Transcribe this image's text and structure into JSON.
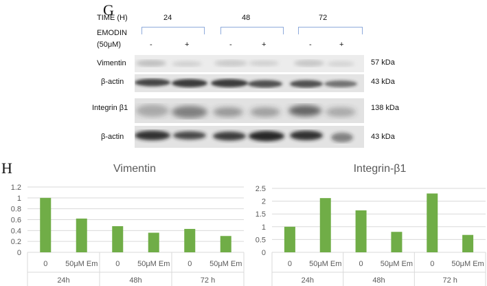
{
  "panel_g_letter": "G",
  "panel_h_letter": "H",
  "blot": {
    "time_label": "TIME (H)",
    "emodin_label_line1": "EMODIN",
    "emodin_label_line2": "(50μM)",
    "timepoints": [
      "24",
      "48",
      "72"
    ],
    "treatment_signs": [
      "-",
      "+",
      "-",
      "+",
      "-",
      "+"
    ],
    "rows": [
      {
        "name": "Vimentin",
        "kda": "57 kDa"
      },
      {
        "name": "β-actin",
        "kda": "43 kDa"
      },
      {
        "name": "Integrin β1",
        "kda": "138 kDa"
      },
      {
        "name": "β-actin",
        "kda": "43 kDa"
      }
    ],
    "band_color": "#2a2a2a",
    "background_color": "#e9e9e9"
  },
  "chart_data": [
    {
      "type": "bar",
      "title": "Vimentin",
      "categories": [
        "0",
        "50μM Em",
        "0",
        "50μM Em",
        "0",
        "50μM Em"
      ],
      "groups": [
        "24h",
        "48h",
        "72 h"
      ],
      "values": [
        1.0,
        0.62,
        0.48,
        0.36,
        0.43,
        0.3
      ],
      "yticks": [
        "0",
        "0.2",
        "0.4",
        "0.6",
        "0.8",
        "1",
        "1.2"
      ],
      "ylim": [
        0,
        1.2
      ],
      "bar_color": "#70ad47",
      "xlabel": "",
      "ylabel": ""
    },
    {
      "type": "bar",
      "title": "Integrin-β1",
      "categories": [
        "0",
        "50μM Em",
        "0",
        "50μM Em",
        "0",
        "50μM Em"
      ],
      "groups": [
        "24h",
        "48h",
        "72 h"
      ],
      "values": [
        1.0,
        2.12,
        1.64,
        0.8,
        2.3,
        0.68
      ],
      "yticks": [
        "0",
        "0.5",
        "1",
        "1.5",
        "2",
        "2.5"
      ],
      "ylim": [
        0,
        2.5
      ],
      "bar_color": "#70ad47",
      "xlabel": "",
      "ylabel": ""
    }
  ]
}
